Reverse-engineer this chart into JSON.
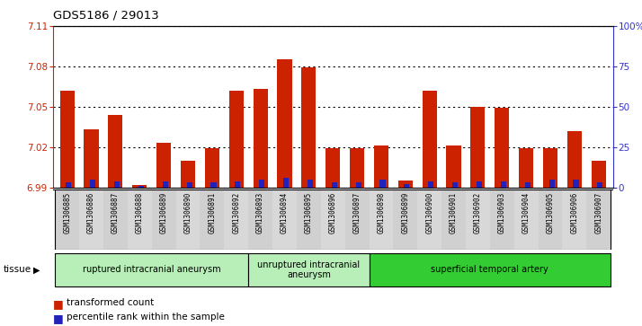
{
  "title": "GDS5186 / 29013",
  "samples": [
    "GSM1306885",
    "GSM1306886",
    "GSM1306887",
    "GSM1306888",
    "GSM1306889",
    "GSM1306890",
    "GSM1306891",
    "GSM1306892",
    "GSM1306893",
    "GSM1306894",
    "GSM1306895",
    "GSM1306896",
    "GSM1306897",
    "GSM1306898",
    "GSM1306899",
    "GSM1306900",
    "GSM1306901",
    "GSM1306902",
    "GSM1306903",
    "GSM1306904",
    "GSM1306905",
    "GSM1306906",
    "GSM1306907"
  ],
  "transformed_count": [
    7.062,
    7.033,
    7.044,
    6.992,
    7.023,
    7.01,
    7.019,
    7.062,
    7.063,
    7.085,
    7.079,
    7.019,
    7.019,
    7.021,
    6.995,
    7.062,
    7.021,
    7.05,
    7.049,
    7.019,
    7.019,
    7.032,
    7.01
  ],
  "percentile_rank": [
    3,
    5,
    4,
    1,
    4,
    3,
    3,
    4,
    5,
    6,
    5,
    3,
    3,
    5,
    2,
    4,
    3,
    4,
    4,
    3,
    5,
    5,
    3
  ],
  "groups": [
    {
      "label": "ruptured intracranial aneurysm",
      "start": 0,
      "end": 8,
      "color": "#b8eeb8"
    },
    {
      "label": "unruptured intracranial\naneurysm",
      "start": 8,
      "end": 13,
      "color": "#b8eeb8"
    },
    {
      "label": "superficial temporal artery",
      "start": 13,
      "end": 23,
      "color": "#33cc33"
    }
  ],
  "ylim": [
    6.99,
    7.11
  ],
  "yticks": [
    6.99,
    7.02,
    7.05,
    7.08,
    7.11
  ],
  "y2ticks": [
    0,
    25,
    50,
    75,
    100
  ],
  "bar_color_red": "#cc2200",
  "bar_color_blue": "#2222bb",
  "left_axis_color": "#cc2200",
  "right_axis_color": "#3333cc",
  "xticklabel_bg": "#d8d8d8",
  "tissue_label": "tissue"
}
